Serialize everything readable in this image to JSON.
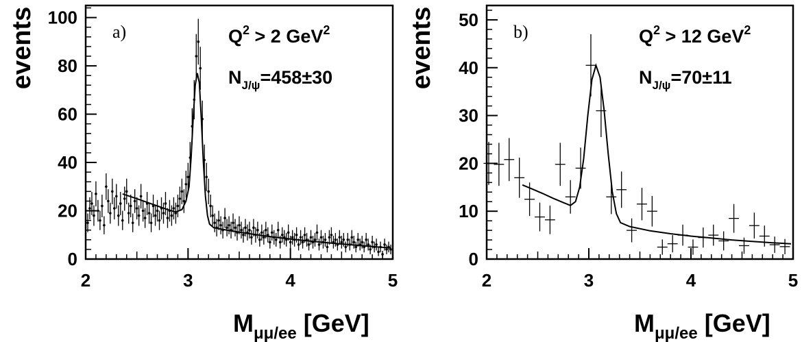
{
  "chart_data": [
    {
      "type": "scatter",
      "panel_label": "a)",
      "annotation_cut": {
        "Q": "Q",
        "exp": "2",
        "rel": " > 2 GeV",
        "exp2": "2"
      },
      "annotation_n": {
        "N": "N",
        "sub": "J/ψ",
        "rest": "=458±30"
      },
      "ylabel": "events",
      "xlabel": {
        "M": "M",
        "sub": "μμ/ee",
        "unit": " [GeV]"
      },
      "xlim": [
        2,
        5
      ],
      "ylim": [
        0,
        105
      ],
      "xticks": [
        "2",
        "3",
        "4",
        "5"
      ],
      "yticks": [
        "0",
        "20",
        "40",
        "60",
        "80",
        "100"
      ],
      "ytick_values": [
        0,
        20,
        40,
        60,
        80,
        100
      ],
      "xtick_values": [
        2,
        3,
        4,
        5
      ],
      "points": [
        [
          2.02,
          15
        ],
        [
          2.04,
          21
        ],
        [
          2.06,
          23
        ],
        [
          2.08,
          18
        ],
        [
          2.1,
          27
        ],
        [
          2.12,
          20
        ],
        [
          2.14,
          16
        ],
        [
          2.16,
          22
        ],
        [
          2.18,
          14
        ],
        [
          2.2,
          30
        ],
        [
          2.22,
          24
        ],
        [
          2.24,
          19
        ],
        [
          2.26,
          28
        ],
        [
          2.28,
          21
        ],
        [
          2.3,
          26
        ],
        [
          2.32,
          18
        ],
        [
          2.34,
          23
        ],
        [
          2.36,
          16
        ],
        [
          2.38,
          25
        ],
        [
          2.4,
          28
        ],
        [
          2.42,
          19
        ],
        [
          2.44,
          22
        ],
        [
          2.46,
          15
        ],
        [
          2.48,
          24
        ],
        [
          2.5,
          21
        ],
        [
          2.52,
          18
        ],
        [
          2.54,
          26
        ],
        [
          2.56,
          20
        ],
        [
          2.58,
          17
        ],
        [
          2.6,
          23
        ],
        [
          2.62,
          19
        ],
        [
          2.64,
          15
        ],
        [
          2.66,
          22
        ],
        [
          2.68,
          18
        ],
        [
          2.7,
          20
        ],
        [
          2.72,
          16
        ],
        [
          2.74,
          21
        ],
        [
          2.76,
          19
        ],
        [
          2.78,
          23
        ],
        [
          2.8,
          17
        ],
        [
          2.82,
          20
        ],
        [
          2.84,
          18
        ],
        [
          2.86,
          21
        ],
        [
          2.88,
          19
        ],
        [
          2.9,
          22
        ],
        [
          2.92,
          25
        ],
        [
          2.94,
          28
        ],
        [
          2.96,
          24
        ],
        [
          2.98,
          31
        ],
        [
          3.0,
          34
        ],
        [
          3.02,
          42
        ],
        [
          3.04,
          55
        ],
        [
          3.06,
          66
        ],
        [
          3.08,
          84
        ],
        [
          3.1,
          90
        ],
        [
          3.12,
          79
        ],
        [
          3.14,
          58
        ],
        [
          3.16,
          41
        ],
        [
          3.18,
          34
        ],
        [
          3.2,
          28
        ],
        [
          3.22,
          22
        ],
        [
          3.24,
          18
        ],
        [
          3.26,
          15
        ],
        [
          3.28,
          13
        ],
        [
          3.3,
          16
        ],
        [
          3.32,
          14
        ],
        [
          3.34,
          12
        ],
        [
          3.36,
          17
        ],
        [
          3.38,
          13
        ],
        [
          3.4,
          14
        ],
        [
          3.42,
          12
        ],
        [
          3.44,
          15
        ],
        [
          3.46,
          13
        ],
        [
          3.48,
          11
        ],
        [
          3.5,
          14
        ],
        [
          3.52,
          12
        ],
        [
          3.54,
          10
        ],
        [
          3.56,
          13
        ],
        [
          3.58,
          11
        ],
        [
          3.6,
          12
        ],
        [
          3.62,
          9
        ],
        [
          3.64,
          13
        ],
        [
          3.66,
          10
        ],
        [
          3.68,
          12
        ],
        [
          3.7,
          8
        ],
        [
          3.72,
          11
        ],
        [
          3.74,
          9
        ],
        [
          3.76,
          12
        ],
        [
          3.78,
          10
        ],
        [
          3.8,
          7
        ],
        [
          3.82,
          11
        ],
        [
          3.84,
          9
        ],
        [
          3.86,
          8
        ],
        [
          3.88,
          12
        ],
        [
          3.9,
          7
        ],
        [
          3.92,
          10
        ],
        [
          3.94,
          9
        ],
        [
          3.96,
          8
        ],
        [
          3.98,
          11
        ],
        [
          4.0,
          7
        ],
        [
          4.02,
          9
        ],
        [
          4.04,
          8
        ],
        [
          4.06,
          10
        ],
        [
          4.08,
          6
        ],
        [
          4.1,
          9
        ],
        [
          4.12,
          7
        ],
        [
          4.14,
          10
        ],
        [
          4.16,
          8
        ],
        [
          4.18,
          6
        ],
        [
          4.2,
          9
        ],
        [
          4.22,
          7
        ],
        [
          4.24,
          8
        ],
        [
          4.26,
          11
        ],
        [
          4.28,
          6
        ],
        [
          4.3,
          9
        ],
        [
          4.32,
          7
        ],
        [
          4.34,
          8
        ],
        [
          4.36,
          5
        ],
        [
          4.38,
          9
        ],
        [
          4.4,
          10
        ],
        [
          4.42,
          7
        ],
        [
          4.44,
          8
        ],
        [
          4.46,
          6
        ],
        [
          4.48,
          9
        ],
        [
          4.5,
          7
        ],
        [
          4.52,
          8
        ],
        [
          4.54,
          5
        ],
        [
          4.56,
          8
        ],
        [
          4.58,
          6
        ],
        [
          4.6,
          9
        ],
        [
          4.62,
          7
        ],
        [
          4.64,
          5
        ],
        [
          4.66,
          8
        ],
        [
          4.68,
          6
        ],
        [
          4.7,
          7
        ],
        [
          4.72,
          5
        ],
        [
          4.74,
          8
        ],
        [
          4.76,
          6
        ],
        [
          4.78,
          4
        ],
        [
          4.8,
          7
        ],
        [
          4.82,
          5
        ],
        [
          4.84,
          6
        ],
        [
          4.86,
          3
        ],
        [
          4.88,
          5
        ],
        [
          4.9,
          2
        ],
        [
          4.92,
          6
        ],
        [
          4.94,
          4
        ],
        [
          4.96,
          5
        ],
        [
          4.98,
          4
        ]
      ],
      "fit": [
        [
          2.36,
          27
        ],
        [
          2.5,
          25
        ],
        [
          2.6,
          23.5
        ],
        [
          2.7,
          22
        ],
        [
          2.8,
          20.5
        ],
        [
          2.88,
          19.5
        ],
        [
          2.94,
          20.5
        ],
        [
          2.98,
          24
        ],
        [
          3.01,
          30
        ],
        [
          3.03,
          42
        ],
        [
          3.05,
          58
        ],
        [
          3.07,
          72
        ],
        [
          3.09,
          77
        ],
        [
          3.11,
          73
        ],
        [
          3.13,
          58
        ],
        [
          3.15,
          40
        ],
        [
          3.17,
          26
        ],
        [
          3.19,
          18
        ],
        [
          3.21,
          14.5
        ],
        [
          3.25,
          13
        ],
        [
          3.4,
          11.8
        ],
        [
          3.6,
          10.5
        ],
        [
          3.8,
          9.3
        ],
        [
          4.0,
          8.3
        ],
        [
          4.2,
          7.4
        ],
        [
          4.4,
          6.6
        ],
        [
          4.6,
          5.9
        ],
        [
          4.8,
          5.2
        ],
        [
          4.98,
          4.6
        ]
      ]
    },
    {
      "type": "scatter",
      "panel_label": "b)",
      "annotation_cut": {
        "Q": "Q",
        "exp": "2",
        "rel": " > 12 GeV",
        "exp2": "2"
      },
      "annotation_n": {
        "N": "N",
        "sub": "J/ψ",
        "rest": "=70±11"
      },
      "ylabel": "events",
      "xlabel": {
        "M": "M",
        "sub": "μμ/ee",
        "unit": " [GeV]"
      },
      "xlim": [
        2,
        5
      ],
      "ylim": [
        0,
        53
      ],
      "xticks": [
        "2",
        "3",
        "4",
        "5"
      ],
      "yticks": [
        "0",
        "10",
        "20",
        "30",
        "40",
        "50"
      ],
      "ytick_values": [
        0,
        10,
        20,
        30,
        40,
        50
      ],
      "xtick_values": [
        2,
        3,
        4,
        5
      ],
      "bin_halfwidth": 0.05,
      "points": [
        [
          2.02,
          20,
          4.5
        ],
        [
          2.12,
          19.8,
          4.5
        ],
        [
          2.22,
          20.8,
          4.5
        ],
        [
          2.32,
          17,
          4.2
        ],
        [
          2.42,
          12.5,
          3.5
        ],
        [
          2.52,
          8.8,
          3.0
        ],
        [
          2.62,
          8.2,
          3.0
        ],
        [
          2.72,
          19.8,
          4.5
        ],
        [
          2.82,
          13,
          3.5
        ],
        [
          2.92,
          19,
          4.3
        ],
        [
          3.02,
          40.5,
          6.5
        ],
        [
          3.12,
          31,
          5.5
        ],
        [
          3.22,
          13,
          3.6
        ],
        [
          3.32,
          14.5,
          3.8
        ],
        [
          3.42,
          6,
          2.5
        ],
        [
          3.52,
          11.5,
          3.4
        ],
        [
          3.62,
          10,
          3.2
        ],
        [
          3.72,
          2.5,
          1.6
        ],
        [
          3.82,
          3.2,
          1.8
        ],
        [
          3.92,
          5,
          2.2
        ],
        [
          4.02,
          2.5,
          1.6
        ],
        [
          4.12,
          4.5,
          2.1
        ],
        [
          4.22,
          5,
          2.2
        ],
        [
          4.32,
          3.8,
          2.0
        ],
        [
          4.42,
          8.5,
          3.0
        ],
        [
          4.52,
          2.8,
          1.7
        ],
        [
          4.62,
          7,
          2.7
        ],
        [
          4.72,
          4.8,
          2.2
        ],
        [
          4.82,
          3,
          1.7
        ],
        [
          4.92,
          2.6,
          1.6
        ]
      ],
      "fit": [
        [
          2.35,
          15.5
        ],
        [
          2.45,
          14.6
        ],
        [
          2.55,
          13.7
        ],
        [
          2.65,
          12.7
        ],
        [
          2.75,
          11.8
        ],
        [
          2.82,
          11.2
        ],
        [
          2.87,
          12
        ],
        [
          2.91,
          15
        ],
        [
          2.95,
          21
        ],
        [
          2.99,
          30
        ],
        [
          3.03,
          37.5
        ],
        [
          3.07,
          40.5
        ],
        [
          3.11,
          38
        ],
        [
          3.15,
          31
        ],
        [
          3.19,
          22
        ],
        [
          3.23,
          14
        ],
        [
          3.27,
          9.5
        ],
        [
          3.31,
          7.6
        ],
        [
          3.4,
          6.8
        ],
        [
          3.6,
          5.9
        ],
        [
          3.8,
          5.3
        ],
        [
          4.0,
          4.8
        ],
        [
          4.2,
          4.4
        ],
        [
          4.4,
          4.0
        ],
        [
          4.6,
          3.7
        ],
        [
          4.8,
          3.4
        ],
        [
          4.98,
          3.2
        ]
      ]
    }
  ]
}
